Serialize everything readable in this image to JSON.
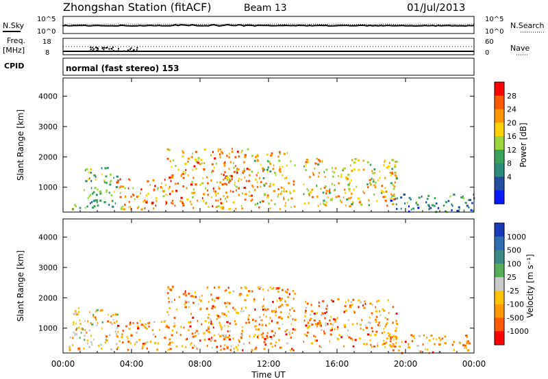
{
  "header": {
    "title": "Zhongshan Station (fitACF)",
    "beam": "Beam 13",
    "date": "01/Jul/2013"
  },
  "strip_nsky": {
    "label": "N.Sky",
    "left_ticks": [
      "10^5",
      "10^0"
    ],
    "right_ticks": [
      "10^5",
      "10^0"
    ],
    "right_label": "N.Search"
  },
  "strip_freq": {
    "label_top": "Freq.",
    "label_unit": "[MHz]",
    "left_ticks": [
      "18",
      "8"
    ],
    "right_ticks": [
      "60",
      "0"
    ],
    "right_label": "Nave"
  },
  "strip_cpid": {
    "label": "CPID",
    "mode_text": "normal (fast stereo) 153"
  },
  "xaxis": {
    "label": "Time UT",
    "ticks": [
      "00:00",
      "04:00",
      "08:00",
      "12:00",
      "16:00",
      "20:00",
      "00:00"
    ]
  },
  "power_panel": {
    "ylabel": "Slant Range [km]",
    "yticks": [
      "4000",
      "3000",
      "2000",
      "1000"
    ],
    "colorbar_label": "Power [dB]",
    "colorbar_ticks": [
      "28",
      "24",
      "20",
      "16",
      "12",
      "8",
      "4"
    ],
    "colorbar_colors": [
      "#ff0000",
      "#ff5a00",
      "#ff9600",
      "#ffd200",
      "#9ad63c",
      "#3aa05a",
      "#2d8c7a",
      "#244fa0",
      "#0a1aff"
    ]
  },
  "velocity_panel": {
    "ylabel": "Slant Range [km]",
    "yticks": [
      "4000",
      "3000",
      "2000",
      "1000"
    ],
    "colorbar_label": "Velocity [m s⁻¹]",
    "colorbar_ticks": [
      "1000",
      "500",
      "100",
      "25",
      "-25",
      "-100",
      "-500",
      "-1000"
    ],
    "colorbar_colors": [
      "#1a3ab8",
      "#2f6db0",
      "#3b8a86",
      "#58ae5a",
      "#c9c9c9",
      "#ffc300",
      "#ff9a00",
      "#ff5a00",
      "#ff0000"
    ]
  },
  "chart_data": [
    {
      "type": "heatmap",
      "title": "Power",
      "xlabel": "Time UT",
      "ylabel": "Slant Range [km]",
      "xlim": [
        "00:00",
        "24:00"
      ],
      "ylim": [
        180,
        4600
      ],
      "zlabel": "Power [dB]",
      "zticks": [
        4,
        8,
        12,
        16,
        20,
        24,
        28
      ],
      "scatter_regions": [
        {
          "time_start_h": 0.3,
          "time_end_h": 1.1,
          "range_km_start": 280,
          "range_km_end": 550,
          "level_db": 10
        },
        {
          "time_start_h": 1.1,
          "time_end_h": 3.2,
          "range_km_start": 300,
          "range_km_end": 1700,
          "level_db": 12
        },
        {
          "time_start_h": 3.0,
          "time_end_h": 6.0,
          "range_km_start": 300,
          "range_km_end": 1300,
          "level_db": 20
        },
        {
          "time_start_h": 6.0,
          "time_end_h": 11.0,
          "range_km_start": 300,
          "range_km_end": 2300,
          "level_db": 22
        },
        {
          "time_start_h": 11.0,
          "time_end_h": 13.5,
          "range_km_start": 300,
          "range_km_end": 2200,
          "level_db": 18
        },
        {
          "time_start_h": 14.0,
          "time_end_h": 19.5,
          "range_km_start": 400,
          "range_km_end": 2000,
          "level_db": 16
        },
        {
          "time_start_h": 19.0,
          "time_end_h": 24.0,
          "range_km_start": 200,
          "range_km_end": 800,
          "level_db": 8
        }
      ]
    },
    {
      "type": "heatmap",
      "title": "Velocity",
      "xlabel": "Time UT",
      "ylabel": "Slant Range [km]",
      "xlim": [
        "00:00",
        "24:00"
      ],
      "ylim": [
        180,
        4600
      ],
      "zlabel": "Velocity [m s⁻¹]",
      "zticks": [
        -1000,
        -500,
        -100,
        -25,
        25,
        100,
        500,
        1000
      ],
      "scatter_regions": [
        {
          "time_start_h": 0.3,
          "time_end_h": 3.2,
          "range_km_start": 280,
          "range_km_end": 1700,
          "level_ms": -100
        },
        {
          "time_start_h": 3.0,
          "time_end_h": 6.0,
          "range_km_start": 300,
          "range_km_end": 1300,
          "level_ms": -300
        },
        {
          "time_start_h": 6.0,
          "time_end_h": 13.5,
          "range_km_start": 300,
          "range_km_end": 2400,
          "level_ms": -400
        },
        {
          "time_start_h": 14.0,
          "time_end_h": 19.5,
          "range_km_start": 400,
          "range_km_end": 2000,
          "level_ms": -200
        },
        {
          "time_start_h": 19.0,
          "time_end_h": 24.0,
          "range_km_start": 200,
          "range_km_end": 800,
          "level_ms": -150
        }
      ]
    }
  ]
}
